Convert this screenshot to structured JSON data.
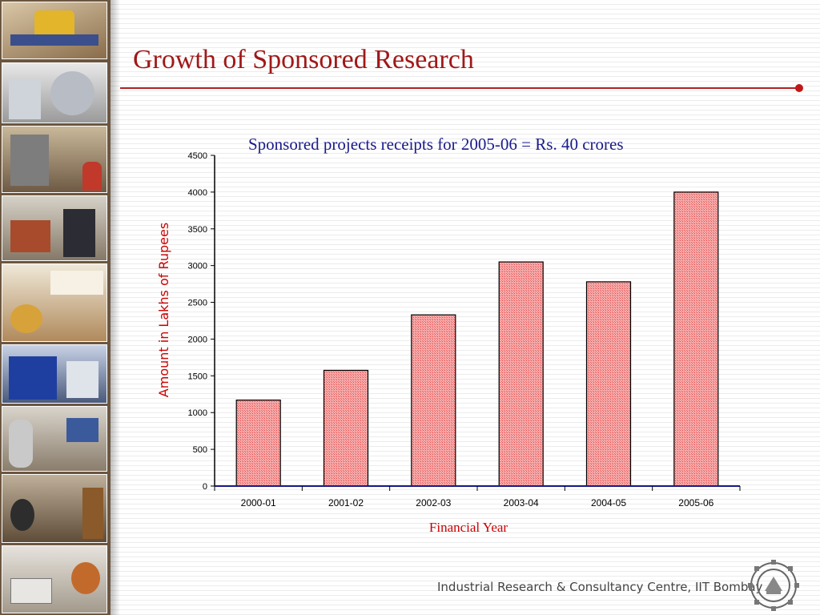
{
  "slide": {
    "title": "Growth of Sponsored Research",
    "footer": "Industrial Research & Consultancy Centre, IIT Bombay"
  },
  "colors": {
    "title": "#a01818",
    "accent_rule": "#b02020",
    "chart_title": "#1a1a8c",
    "bar_fill": "#f7a9a9",
    "bar_pattern": "#e05050",
    "bar_outline": "#000000",
    "axis_label": "#cc0000"
  },
  "icons": [
    "iit-bombay-logo"
  ],
  "chart_data": {
    "type": "bar",
    "title": "Sponsored projects receipts for 2005-06 = Rs. 40 crores",
    "xlabel": "Financial Year",
    "ylabel": "Amount in Lakhs of Rupees",
    "categories": [
      "2000-01",
      "2001-02",
      "2002-03",
      "2003-04",
      "2004-05",
      "2005-06"
    ],
    "values": [
      1170,
      1575,
      2330,
      3050,
      2780,
      4000
    ],
    "ylim": [
      0,
      4500
    ],
    "yticks": [
      0,
      500,
      1000,
      1500,
      2000,
      2500,
      3000,
      3500,
      4000,
      4500
    ],
    "grid": false,
    "legend": "none"
  }
}
